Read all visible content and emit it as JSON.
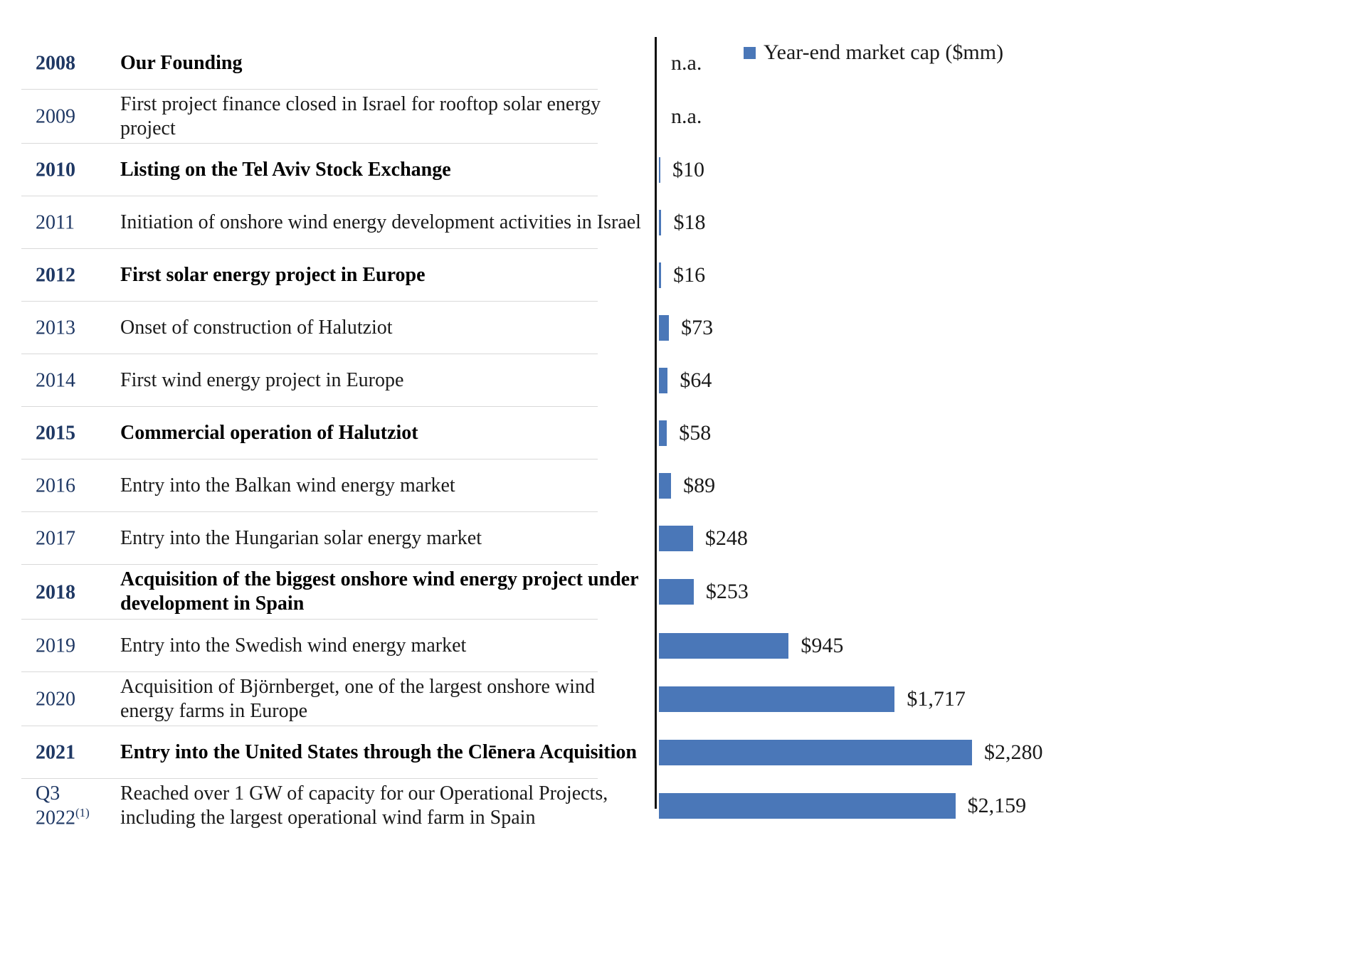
{
  "legend": {
    "label": "Year-end market cap ($mm)",
    "marker_color": "#4a77b8"
  },
  "chart_data": {
    "type": "bar",
    "orientation": "horizontal",
    "series_name": "Year-end market cap ($mm)",
    "unit": "$mm",
    "max_value": 2280,
    "bar_color": "#4a77b8",
    "rows": [
      {
        "year": "2008",
        "year_sup": "",
        "milestone": "Our Founding",
        "value": null,
        "value_label": "n.a.",
        "bold": true
      },
      {
        "year": "2009",
        "year_sup": "",
        "milestone": "First project finance closed in Israel for rooftop solar energy project",
        "value": null,
        "value_label": "n.a.",
        "bold": false
      },
      {
        "year": "2010",
        "year_sup": "",
        "milestone": "Listing on the Tel Aviv Stock Exchange",
        "value": 10,
        "value_label": "$10",
        "bold": true
      },
      {
        "year": "2011",
        "year_sup": "",
        "milestone": "Initiation of onshore wind energy development activities in Israel",
        "value": 18,
        "value_label": "$18",
        "bold": false
      },
      {
        "year": "2012",
        "year_sup": "",
        "milestone": "First solar energy project in Europe",
        "value": 16,
        "value_label": "$16",
        "bold": true
      },
      {
        "year": "2013",
        "year_sup": "",
        "milestone": "Onset of construction of Halutziot",
        "value": 73,
        "value_label": "$73",
        "bold": false
      },
      {
        "year": "2014",
        "year_sup": "",
        "milestone": "First wind energy project in Europe",
        "value": 64,
        "value_label": "$64",
        "bold": false
      },
      {
        "year": "2015",
        "year_sup": "",
        "milestone": "Commercial operation of Halutziot",
        "value": 58,
        "value_label": "$58",
        "bold": true
      },
      {
        "year": "2016",
        "year_sup": "",
        "milestone": "Entry into the Balkan wind energy market",
        "value": 89,
        "value_label": "$89",
        "bold": false
      },
      {
        "year": "2017",
        "year_sup": "",
        "milestone": "Entry into the Hungarian solar energy market",
        "value": 248,
        "value_label": "$248",
        "bold": false
      },
      {
        "year": "2018",
        "year_sup": "",
        "milestone": "Acquisition of the biggest onshore wind energy project under development in Spain",
        "value": 253,
        "value_label": "$253",
        "bold": true
      },
      {
        "year": "2019",
        "year_sup": "",
        "milestone": "Entry into the Swedish wind energy market",
        "value": 945,
        "value_label": "$945",
        "bold": false
      },
      {
        "year": "2020",
        "year_sup": "",
        "milestone": "Acquisition of Björnberget, one of the largest onshore wind energy farms in Europe",
        "value": 1717,
        "value_label": "$1,717",
        "bold": false
      },
      {
        "year": "2021",
        "year_sup": "",
        "milestone": "Entry into the United States through the Clēnera Acquisition",
        "value": 2280,
        "value_label": "$2,280",
        "bold": true
      },
      {
        "year": "Q3 2022",
        "year_sup": "(1)",
        "milestone": "Reached over 1 GW of capacity for our Operational Projects, including the largest operational wind farm in Spain",
        "value": 2159,
        "value_label": "$2,159",
        "bold": false
      }
    ]
  }
}
